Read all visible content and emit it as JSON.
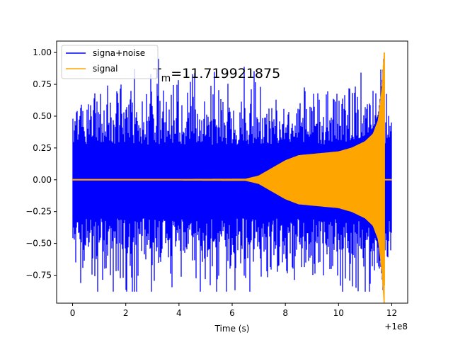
{
  "chart_data": {
    "type": "line",
    "title": "",
    "xlabel": "Time (s)",
    "ylabel": "",
    "x_offset_text": "+1e8",
    "xlim": [
      -0.6,
      12.6
    ],
    "ylim": [
      -0.97,
      1.09
    ],
    "x_ticks": [
      0,
      2,
      4,
      6,
      8,
      10,
      12
    ],
    "x_tick_labels": [
      "0",
      "2",
      "4",
      "6",
      "8",
      "10",
      "12"
    ],
    "y_ticks": [
      -0.75,
      -0.5,
      -0.25,
      0.0,
      0.25,
      0.5,
      0.75,
      1.0
    ],
    "y_tick_labels": [
      "−0.75",
      "−0.50",
      "−0.25",
      "0.00",
      "0.25",
      "0.50",
      "0.75",
      "1.00"
    ],
    "grid": false,
    "legend_position": "top-left",
    "annotation": {
      "symbol": "T",
      "subscript": "m",
      "text": "=11.719921875",
      "x": 11.719921875
    },
    "series": [
      {
        "name": "signa+noise",
        "color": "#0000ff",
        "description": "broadband noise plus chirp",
        "x_start": 0,
        "x_end": 12,
        "upper_envelope_typical": 0.5,
        "lower_envelope_typical": -0.55,
        "peak_max": 0.95,
        "peak_min": -0.88
      },
      {
        "name": "signal",
        "color": "#ffa500",
        "description": "inspiral chirp",
        "x_start": 0,
        "x_end": 12,
        "envelope": [
          [
            0,
            0.0
          ],
          [
            6.5,
            0.005
          ],
          [
            7.0,
            0.03
          ],
          [
            7.5,
            0.09
          ],
          [
            8.0,
            0.15
          ],
          [
            8.5,
            0.19
          ],
          [
            9.0,
            0.2
          ],
          [
            9.5,
            0.21
          ],
          [
            10.0,
            0.22
          ],
          [
            10.5,
            0.25
          ],
          [
            11.0,
            0.3
          ],
          [
            11.3,
            0.36
          ],
          [
            11.5,
            0.47
          ],
          [
            11.65,
            0.75
          ],
          [
            11.72,
            1.0
          ]
        ],
        "merger_peak": 1.0,
        "merger_trough": -0.83
      }
    ]
  }
}
